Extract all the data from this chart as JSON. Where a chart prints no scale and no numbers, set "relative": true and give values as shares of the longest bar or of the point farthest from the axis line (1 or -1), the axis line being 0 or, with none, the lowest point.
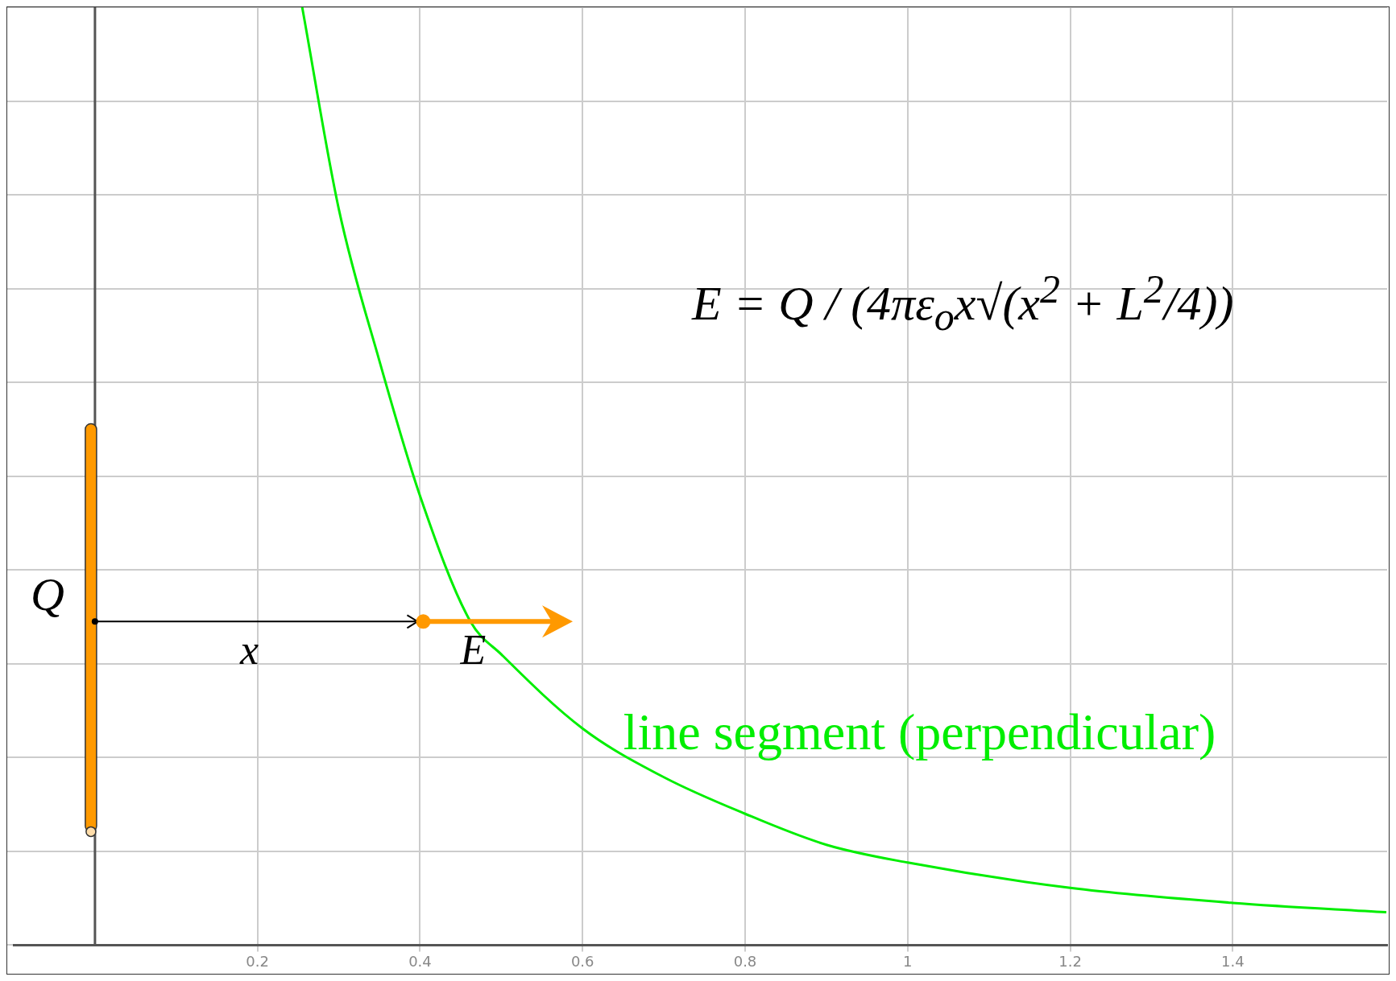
{
  "chart_data": {
    "type": "line",
    "relative": true,
    "x": [
      0.255,
      0.3,
      0.35,
      0.4,
      0.462,
      0.5,
      0.6,
      0.7,
      0.8,
      0.9,
      1.0,
      1.2,
      1.4,
      1.589
    ],
    "series": [
      {
        "name": "line segment (perpendicular)",
        "color": "#00ee00",
        "values": [
          1,
          0.785,
          0.623,
          0.479,
          0.345,
          0.31,
          0.231,
          0.179,
          0.14,
          0.107,
          0.088,
          0.061,
          0.045,
          0.035
        ]
      }
    ],
    "xlim": [
      -0.1,
      1.59
    ],
    "xticks": [
      0.2,
      0.4,
      0.6,
      0.8,
      1,
      1.2,
      1.4
    ],
    "grid": true,
    "legend": false,
    "marker": "none",
    "line_style": "solid",
    "annotations": [
      "Q",
      "x",
      "E",
      "E = Q / (4πε$_{o}$x√(x$^{2}$ + L$^{2}$/4))"
    ]
  }
}
